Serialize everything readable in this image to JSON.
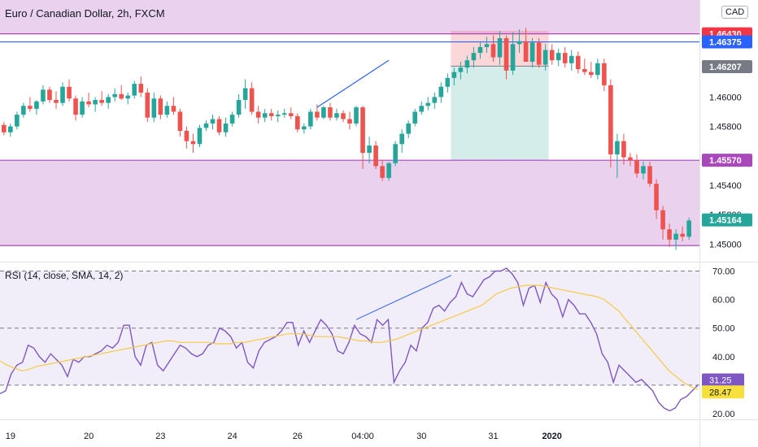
{
  "header": {
    "title": "Euro / Canadian Dollar, 2h, FXCM",
    "currency": "CAD",
    "rsi_title": "RSI (14, close, SMA, 14, 2)"
  },
  "chart_data": [
    {
      "type": "candlestick",
      "title": "Euro / Canadian Dollar, 2h, FXCM",
      "y_ticks": [
        "1.46000",
        "1.45800",
        "1.45400",
        "1.45200",
        "1.45000"
      ],
      "ylim": [
        1.4488,
        1.4666
      ],
      "x_ticks": [
        {
          "label": "19",
          "index": 1
        },
        {
          "label": "20",
          "index": 13
        },
        {
          "label": "23",
          "index": 24
        },
        {
          "label": "24",
          "index": 35
        },
        {
          "label": "26",
          "index": 45
        },
        {
          "label": "04:00",
          "index": 55
        },
        {
          "label": "30",
          "index": 64
        },
        {
          "label": "31",
          "index": 75
        },
        {
          "label": "2020",
          "index": 84
        }
      ],
      "price_labels": [
        {
          "label": "1.46430",
          "value": 1.4643,
          "color": "#f23645"
        },
        {
          "label": "1.46375",
          "value": 1.46375,
          "color": "#2962ff"
        },
        {
          "label": "1.46207",
          "value": 1.46207,
          "color": "#787b86"
        },
        {
          "label": "1.45570",
          "value": 1.4557,
          "color": "#ab47bc"
        },
        {
          "label": "1.45164",
          "value": 1.45164,
          "color": "#26a69a"
        }
      ],
      "zones": [
        {
          "from": 1.4643,
          "to": 1.4666,
          "color": "#e1bee7"
        },
        {
          "from": 1.4499,
          "to": 1.4557,
          "color": "#e1bee7"
        }
      ],
      "hlines": [
        {
          "value": 1.4643,
          "color": "#ab47bc"
        },
        {
          "value": 1.46375,
          "color": "#2962ff"
        },
        {
          "value": 1.4557,
          "color": "#ab47bc"
        },
        {
          "value": 1.4499,
          "color": "#ab47bc"
        }
      ],
      "trendline": {
        "from": [
          48,
          1.4593
        ],
        "to": [
          59,
          1.4625
        ],
        "color": "#2962ff"
      },
      "position_tool": {
        "start_index": 69,
        "end_index": 83,
        "entry": 1.4621,
        "stop": 1.4645,
        "target": 1.4557
      },
      "candles": [
        [
          1.4581,
          1.4583,
          1.4574,
          1.4576
        ],
        [
          1.4576,
          1.4582,
          1.4573,
          1.458
        ],
        [
          1.458,
          1.459,
          1.4578,
          1.4588
        ],
        [
          1.4588,
          1.4596,
          1.4586,
          1.4594
        ],
        [
          1.4594,
          1.46,
          1.459,
          1.4592
        ],
        [
          1.4592,
          1.4598,
          1.4588,
          1.4597
        ],
        [
          1.4597,
          1.4608,
          1.4595,
          1.4605
        ],
        [
          1.4605,
          1.4607,
          1.4596,
          1.4598
        ],
        [
          1.4598,
          1.4604,
          1.4592,
          1.4596
        ],
        [
          1.4596,
          1.461,
          1.4594,
          1.4607
        ],
        [
          1.4607,
          1.4612,
          1.4597,
          1.4599
        ],
        [
          1.4599,
          1.4601,
          1.4584,
          1.4588
        ],
        [
          1.4588,
          1.46,
          1.4586,
          1.4597
        ],
        [
          1.4597,
          1.4603,
          1.4593,
          1.4595
        ],
        [
          1.4595,
          1.46,
          1.459,
          1.4598
        ],
        [
          1.4598,
          1.4604,
          1.4594,
          1.4596
        ],
        [
          1.4596,
          1.4602,
          1.4592,
          1.46
        ],
        [
          1.46,
          1.4606,
          1.4597,
          1.4602
        ],
        [
          1.4602,
          1.4608,
          1.4598,
          1.4599
        ],
        [
          1.4599,
          1.4603,
          1.4595,
          1.4601
        ],
        [
          1.4601,
          1.4611,
          1.4599,
          1.4609
        ],
        [
          1.4609,
          1.4614,
          1.46,
          1.4603
        ],
        [
          1.4603,
          1.4606,
          1.4583,
          1.4586
        ],
        [
          1.4586,
          1.4603,
          1.4583,
          1.4599
        ],
        [
          1.4599,
          1.4601,
          1.4585,
          1.4588
        ],
        [
          1.4588,
          1.4597,
          1.4586,
          1.4594
        ],
        [
          1.4594,
          1.46,
          1.4588,
          1.459
        ],
        [
          1.459,
          1.4592,
          1.4573,
          1.4577
        ],
        [
          1.4577,
          1.458,
          1.4565,
          1.457
        ],
        [
          1.457,
          1.4575,
          1.4562,
          1.4568
        ],
        [
          1.4568,
          1.4581,
          1.4566,
          1.4579
        ],
        [
          1.4579,
          1.4584,
          1.4577,
          1.4582
        ]
      ],
      "candles_note": "",
      "candles_b": [
        [
          1.4582,
          1.4588,
          1.4578,
          1.4585
        ],
        [
          1.4585,
          1.4587,
          1.4574,
          1.4576
        ],
        [
          1.4576,
          1.4586,
          1.4573,
          1.4582
        ],
        [
          1.4582,
          1.459,
          1.458,
          1.4588
        ],
        [
          1.4588,
          1.4602,
          1.4586,
          1.4598
        ],
        [
          1.4598,
          1.4612,
          1.4592,
          1.4606
        ],
        [
          1.4606,
          1.461,
          1.4588,
          1.459
        ],
        [
          1.459,
          1.4594,
          1.4582,
          1.4586
        ],
        [
          1.4586,
          1.4592,
          1.4583,
          1.4589
        ],
        [
          1.4589,
          1.4592,
          1.4584,
          1.4587
        ],
        [
          1.4587,
          1.4591,
          1.4583,
          1.4588
        ],
        [
          1.4588,
          1.4592,
          1.4586,
          1.4589
        ],
        [
          1.4589,
          1.4593,
          1.4585,
          1.4587
        ],
        [
          1.4587,
          1.4589,
          1.4576,
          1.4578
        ],
        [
          1.4578,
          1.4582,
          1.4575,
          1.458
        ],
        [
          1.458,
          1.4592,
          1.4578,
          1.459
        ],
        [
          1.459,
          1.4595,
          1.4584,
          1.4586
        ],
        [
          1.4586,
          1.4594,
          1.4585,
          1.4593
        ],
        [
          1.4593,
          1.4596,
          1.4584,
          1.4586
        ],
        [
          1.4586,
          1.4592,
          1.4584,
          1.4589
        ],
        [
          1.4589,
          1.4591,
          1.4583,
          1.4585
        ],
        [
          1.4585,
          1.459,
          1.4578,
          1.4582
        ],
        [
          1.4582,
          1.4594,
          1.458,
          1.4593
        ]
      ],
      "candles_c": [
        [
          1.4593,
          1.4594,
          1.4551,
          1.4562
        ],
        [
          1.4562,
          1.4573,
          1.4555,
          1.4567
        ],
        [
          1.4567,
          1.457,
          1.4551,
          1.4553
        ],
        [
          1.4553,
          1.4557,
          1.4543,
          1.4545
        ],
        [
          1.4545,
          1.4556,
          1.4543,
          1.4555
        ],
        [
          1.4555,
          1.457,
          1.4553,
          1.4568
        ],
        [
          1.4568,
          1.4578,
          1.4562,
          1.4575
        ],
        [
          1.4575,
          1.4584,
          1.4572,
          1.4582
        ],
        [
          1.4582,
          1.4592,
          1.458,
          1.459
        ],
        [
          1.459,
          1.4597,
          1.4588,
          1.4594
        ],
        [
          1.4594,
          1.46,
          1.4591,
          1.4596
        ],
        [
          1.4596,
          1.4603,
          1.4592,
          1.46
        ],
        [
          1.46,
          1.461,
          1.4596,
          1.4607
        ],
        [
          1.4607,
          1.4616,
          1.4603,
          1.4613
        ],
        [
          1.4613,
          1.462,
          1.4608,
          1.4617
        ],
        [
          1.4617,
          1.4624,
          1.4612,
          1.462
        ],
        [
          1.462,
          1.4628,
          1.4616,
          1.4625
        ],
        [
          1.4625,
          1.4634,
          1.462,
          1.463
        ],
        [
          1.463,
          1.4638,
          1.4626,
          1.4634
        ],
        [
          1.4634,
          1.4641,
          1.463,
          1.4636
        ],
        [
          1.4636,
          1.4642,
          1.4624,
          1.4627
        ],
        [
          1.4627,
          1.4645,
          1.4622,
          1.464
        ],
        [
          1.464,
          1.4642,
          1.4612,
          1.4618
        ],
        [
          1.4618,
          1.4644,
          1.4615,
          1.4636
        ],
        [
          1.4636,
          1.4646,
          1.463,
          1.4638
        ],
        [
          1.4638,
          1.4647,
          1.4632,
          1.4624
        ],
        [
          1.4624,
          1.464,
          1.462,
          1.4637
        ],
        [
          1.4637,
          1.464,
          1.462,
          1.4622
        ],
        [
          1.4622,
          1.4636,
          1.4618,
          1.4632
        ],
        [
          1.4632,
          1.4636,
          1.4622,
          1.4625
        ],
        [
          1.4625,
          1.4633,
          1.4621,
          1.463
        ],
        [
          1.463,
          1.4634,
          1.462,
          1.4623
        ]
      ],
      "candles_d": [
        [
          1.4623,
          1.4632,
          1.4618,
          1.4628
        ],
        [
          1.4628,
          1.4631,
          1.4616,
          1.4619
        ],
        [
          1.4619,
          1.4626,
          1.4615,
          1.4617
        ],
        [
          1.4617,
          1.4624,
          1.4613,
          1.4615
        ],
        [
          1.4615,
          1.4626,
          1.4612,
          1.4623
        ],
        [
          1.4623,
          1.4626,
          1.4604,
          1.4608
        ],
        [
          1.4608,
          1.4612,
          1.4552,
          1.4561
        ],
        [
          1.4561,
          1.4575,
          1.4545,
          1.457
        ],
        [
          1.457,
          1.4575,
          1.4554,
          1.4559
        ],
        [
          1.4559,
          1.4562,
          1.4553,
          1.4557
        ],
        [
          1.4557,
          1.4561,
          1.4545,
          1.4548
        ],
        [
          1.4548,
          1.4556,
          1.4544,
          1.4553
        ],
        [
          1.4553,
          1.4556,
          1.4539,
          1.4541
        ],
        [
          1.4541,
          1.4544,
          1.4517,
          1.4523
        ],
        [
          1.4523,
          1.4526,
          1.4503,
          1.451
        ],
        [
          1.451,
          1.4514,
          1.4498,
          1.4503
        ],
        [
          1.4503,
          1.451,
          1.4496,
          1.4507
        ],
        [
          1.4507,
          1.4512,
          1.4502,
          1.4505
        ],
        [
          1.4505,
          1.4518,
          1.4503,
          1.4516
        ]
      ]
    },
    {
      "type": "line",
      "title": "RSI (14, close, SMA, 14, 2)",
      "y_ticks": [
        "70.00",
        "60.00",
        "50.00",
        "40.00",
        "30.00",
        "20.00"
      ],
      "ylim": [
        18,
        73
      ],
      "levels": [
        70,
        50,
        30
      ],
      "band": [
        30,
        70
      ],
      "series": [
        {
          "color": "#7e57c2",
          "values": [
            27,
            28,
            34,
            37,
            38,
            44,
            43,
            40,
            38,
            41,
            39,
            37,
            33,
            39,
            38,
            40,
            40,
            41,
            42,
            44,
            43,
            45,
            51,
            51,
            40,
            37,
            44,
            45,
            37,
            35,
            38,
            41,
            44,
            43,
            41,
            40,
            41,
            44,
            45,
            50,
            49,
            47,
            43,
            45,
            38,
            36,
            42,
            45,
            46,
            47,
            49,
            52,
            52,
            44,
            49,
            45,
            49,
            53,
            51,
            48,
            42,
            41,
            45,
            51,
            48,
            47,
            45,
            53,
            51,
            53,
            31,
            35,
            38,
            44,
            42,
            50,
            52,
            57,
            58,
            56,
            59,
            61,
            66,
            62,
            61,
            64,
            67,
            68,
            70,
            70,
            71,
            69,
            66,
            58,
            64,
            65,
            59,
            66,
            62,
            60,
            54,
            60,
            58,
            55,
            55,
            52,
            48,
            41,
            38,
            31,
            37,
            35,
            33,
            31,
            32,
            30,
            28,
            24,
            22,
            21,
            22,
            25,
            26,
            28,
            30
          ]
        },
        {
          "color": "#f7c948",
          "values": [
            38.5,
            37,
            36,
            35,
            35.5,
            36.5,
            37,
            37.5,
            38,
            38.5,
            39,
            39.5,
            40,
            40.5,
            41,
            41.5,
            42,
            42.5,
            43,
            43.5,
            44,
            44.5,
            45,
            45.5,
            45.5,
            45,
            45,
            45,
            45,
            45,
            44.5,
            44.5,
            44.5,
            45,
            45,
            45.5,
            46,
            46.5,
            47,
            47.5,
            48,
            48,
            48,
            47.5,
            47,
            47,
            47,
            47,
            46.5,
            46,
            45.5,
            45.5,
            45,
            45,
            45.5,
            46,
            47,
            48,
            49,
            50,
            51,
            52,
            53,
            54,
            55,
            56,
            57,
            58,
            60,
            62,
            63,
            64,
            64.5,
            65,
            65,
            65,
            64.5,
            64,
            63.5,
            63,
            62.5,
            62,
            61.5,
            61,
            60,
            58,
            56,
            53,
            50,
            47,
            44,
            41,
            38,
            35,
            33,
            31,
            29.5,
            28.5
          ]
        }
      ],
      "value_labels": [
        {
          "label": "31.25",
          "color": "#7e57c2"
        },
        {
          "label": "28.47",
          "color": "#f7e03c"
        }
      ]
    }
  ]
}
